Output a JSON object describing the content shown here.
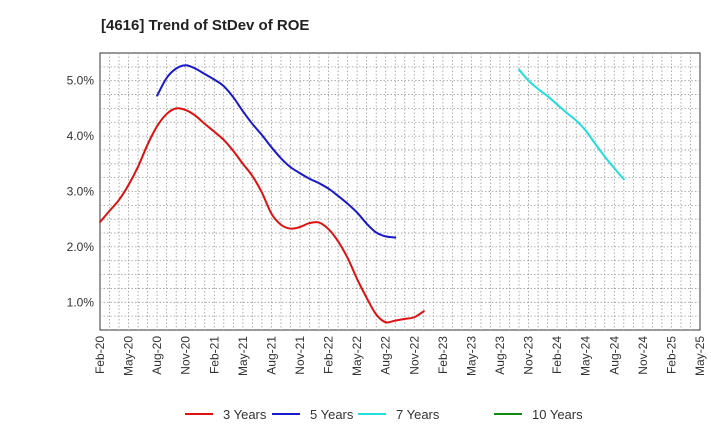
{
  "chart_data": {
    "type": "line",
    "title": "[4616]  Trend of StDev of ROE",
    "xlabel": "",
    "ylabel": "",
    "x_ticks": [
      "Feb-20",
      "May-20",
      "Aug-20",
      "Nov-20",
      "Feb-21",
      "May-21",
      "Aug-21",
      "Nov-21",
      "Feb-22",
      "May-22",
      "Aug-22",
      "Nov-22",
      "Feb-23",
      "May-23",
      "Aug-23",
      "Nov-23",
      "Feb-24",
      "May-24",
      "Aug-24",
      "Nov-24",
      "Feb-25",
      "May-25"
    ],
    "y_ticks": [
      "1.0%",
      "2.0%",
      "3.0%",
      "4.0%",
      "5.0%"
    ],
    "y_tick_values": [
      1.0,
      2.0,
      3.0,
      4.0,
      5.0
    ],
    "ylim": [
      0.5,
      5.5
    ],
    "grid": true,
    "legend_position": "bottom",
    "series": [
      {
        "name": "3 Years",
        "color": "#dd1111",
        "values": [
          2.45,
          2.65,
          2.85,
          3.12,
          3.45,
          3.85,
          4.18,
          4.4,
          4.5,
          4.47,
          4.37,
          4.22,
          4.08,
          3.93,
          3.73,
          3.5,
          3.28,
          2.98,
          2.6,
          2.4,
          2.33,
          2.36,
          2.43,
          2.44,
          2.32,
          2.1,
          1.8,
          1.42,
          1.08,
          0.78,
          0.64,
          0.67,
          0.7,
          0.73,
          0.84
        ]
      },
      {
        "name": "5 Years",
        "color": "#1a1acc",
        "values": [
          null,
          null,
          null,
          null,
          null,
          null,
          4.73,
          5.05,
          5.22,
          5.28,
          5.22,
          5.12,
          5.02,
          4.9,
          4.7,
          4.45,
          4.22,
          4.02,
          3.8,
          3.6,
          3.44,
          3.33,
          3.23,
          3.15,
          3.05,
          2.92,
          2.78,
          2.62,
          2.42,
          2.26,
          2.19,
          2.17
        ]
      },
      {
        "name": "7 Years",
        "color": "#22dddd",
        "values": [
          null,
          null,
          null,
          null,
          null,
          null,
          null,
          null,
          null,
          null,
          null,
          null,
          null,
          null,
          null,
          null,
          null,
          null,
          null,
          null,
          null,
          null,
          null,
          null,
          null,
          null,
          null,
          null,
          null,
          null,
          null,
          null,
          null,
          null,
          null,
          null,
          null,
          null,
          null,
          null,
          null,
          null,
          null,
          null,
          5.2,
          5.0,
          4.85,
          4.72,
          4.57,
          4.42,
          4.28,
          4.1,
          3.86,
          3.63,
          3.42,
          3.22
        ]
      },
      {
        "name": "10 Years",
        "color": "#118811",
        "values": []
      }
    ]
  }
}
